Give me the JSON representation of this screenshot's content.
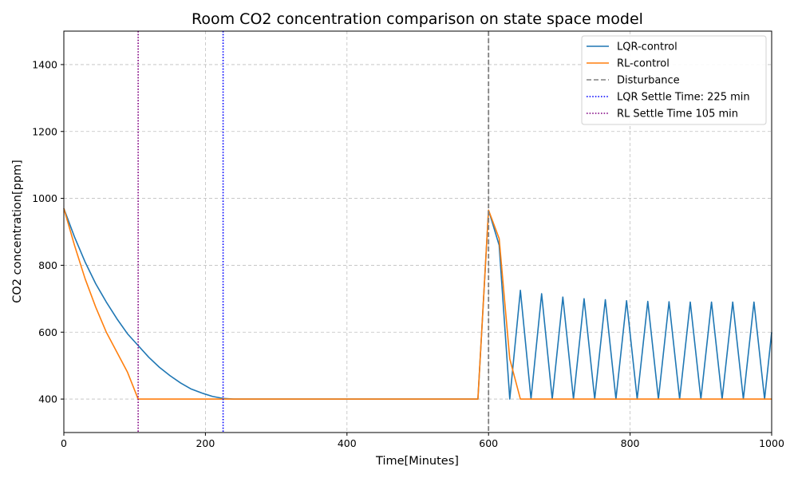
{
  "chart_data": {
    "type": "line",
    "title": "Room CO2 concentration comparison on state space model",
    "xlabel": "Time[Minutes]",
    "ylabel": "CO2 concentration[ppm]",
    "xlim": [
      0,
      1000
    ],
    "ylim": [
      300,
      1500
    ],
    "xticks": [
      0,
      200,
      400,
      600,
      800,
      1000
    ],
    "yticks": [
      400,
      600,
      800,
      1000,
      1200,
      1400
    ],
    "grid": true,
    "legend_position": "top-right",
    "colors": {
      "lqr": "#1f77b4",
      "rl": "#ff7f0e",
      "disturbance": "#808080",
      "lqr_settle": "#0000ff",
      "rl_settle": "#800080"
    },
    "series": [
      {
        "name": "LQR-control",
        "x": [
          0,
          15,
          30,
          45,
          60,
          75,
          90,
          105,
          120,
          135,
          150,
          165,
          180,
          195,
          210,
          225,
          240,
          585,
          600,
          615,
          630,
          645,
          660,
          675,
          690,
          705,
          720,
          735,
          750,
          765,
          780,
          795,
          810,
          825,
          840,
          855,
          870,
          885,
          900,
          915,
          930,
          945,
          960,
          975,
          990,
          1000
        ],
        "y": [
          970,
          885,
          810,
          745,
          690,
          640,
          595,
          560,
          525,
          495,
          470,
          448,
          430,
          418,
          408,
          402,
          400,
          400,
          965,
          860,
          400,
          725,
          400,
          715,
          400,
          705,
          400,
          700,
          400,
          697,
          400,
          694,
          400,
          692,
          400,
          691,
          400,
          690,
          400,
          690,
          400,
          690,
          400,
          690,
          400,
          600
        ]
      },
      {
        "name": "RL-control",
        "x": [
          0,
          15,
          30,
          45,
          60,
          75,
          90,
          105,
          585,
          600,
          615,
          630,
          645,
          1000
        ],
        "y": [
          970,
          860,
          760,
          675,
          600,
          540,
          480,
          400,
          400,
          965,
          880,
          520,
          400,
          400
        ]
      }
    ],
    "vlines": [
      {
        "name": "Disturbance",
        "x": 600,
        "style": "dashed"
      },
      {
        "name": "LQR Settle Time: 225 min",
        "x": 225,
        "style": "dotted"
      },
      {
        "name": "RL Settle Time 105 min",
        "x": 105,
        "style": "dotted"
      }
    ]
  }
}
